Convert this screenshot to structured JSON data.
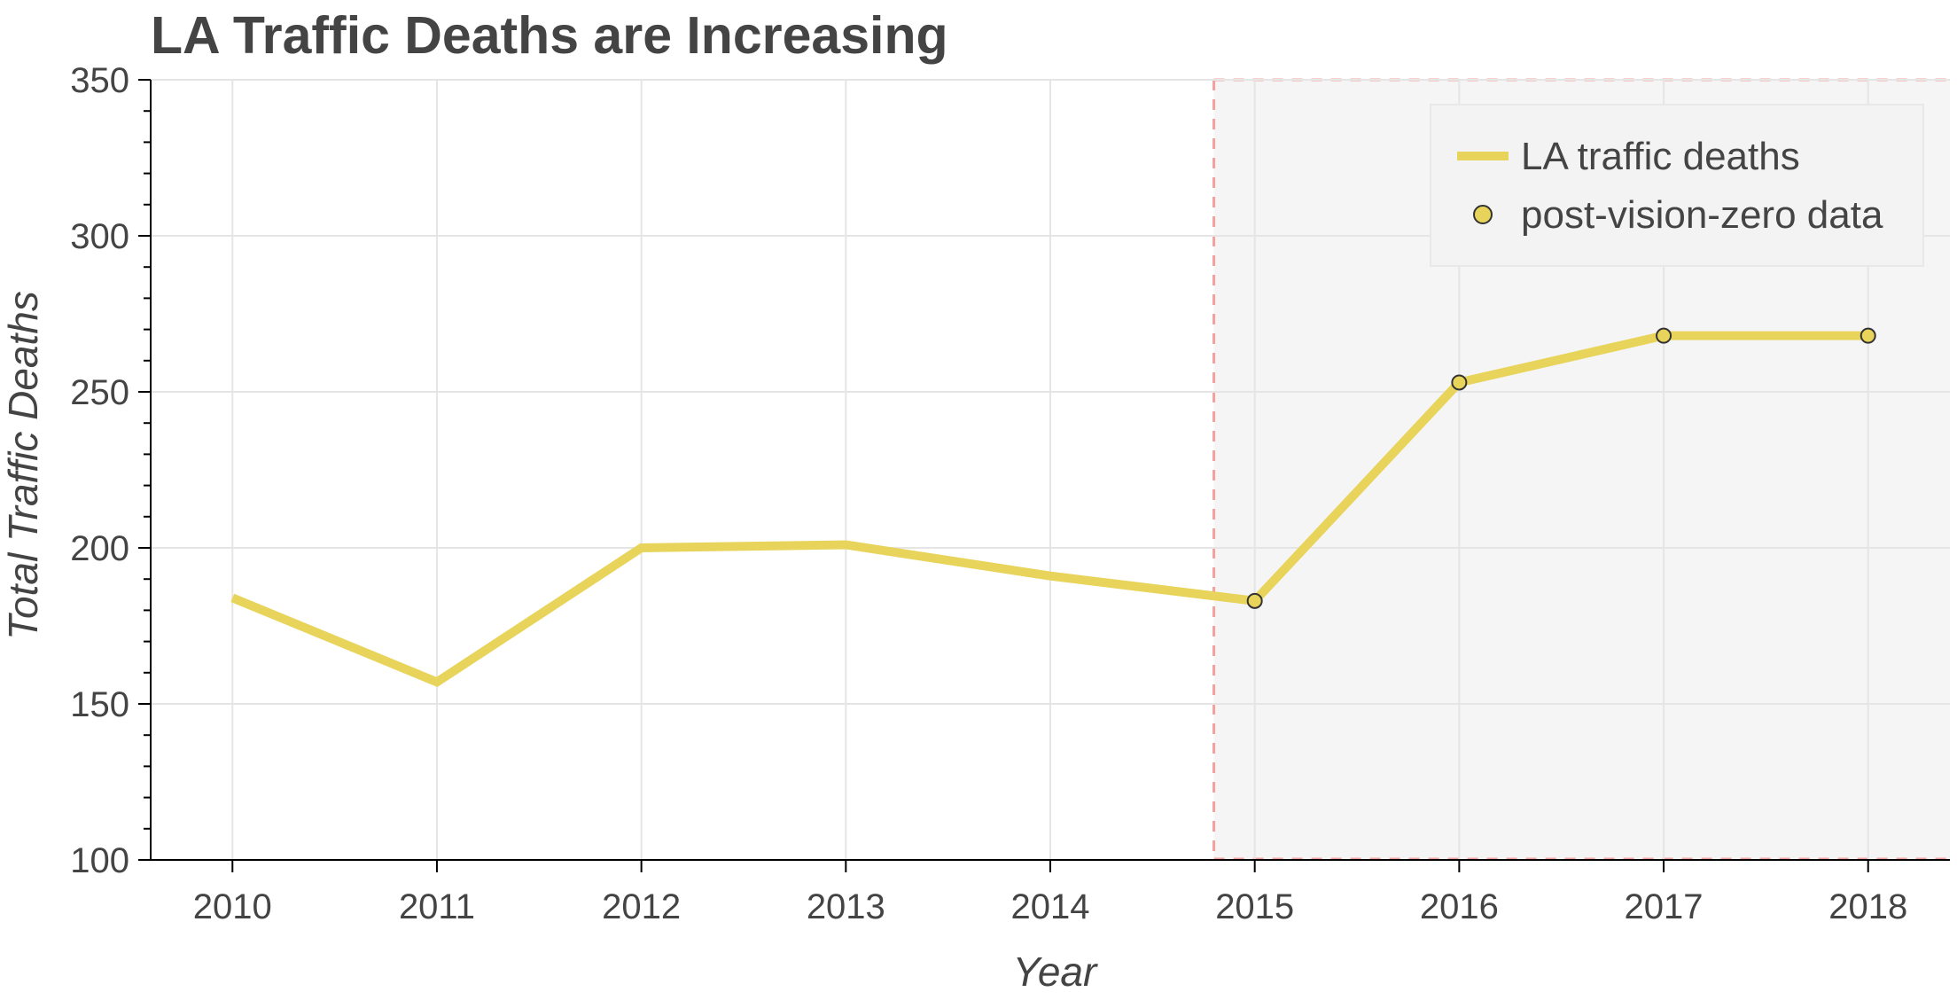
{
  "chart_data": {
    "type": "line",
    "title": "LA Traffic Deaths are Increasing",
    "xlabel": "Year",
    "ylabel": "Total Traffic Deaths",
    "xlim": [
      2009.6,
      2018.4
    ],
    "ylim": [
      100,
      350
    ],
    "x_ticks": [
      2010,
      2011,
      2012,
      2013,
      2014,
      2015,
      2016,
      2017,
      2018
    ],
    "y_ticks": [
      100,
      150,
      200,
      250,
      300,
      350
    ],
    "series": [
      {
        "name": "LA traffic deaths",
        "kind": "line",
        "color": "#E8D45A",
        "x": [
          2010,
          2011,
          2012,
          2013,
          2014,
          2015,
          2016,
          2017,
          2018
        ],
        "y": [
          184,
          157,
          200,
          201,
          191,
          183,
          253,
          268,
          268
        ]
      },
      {
        "name": "post-vision-zero data",
        "kind": "markers",
        "color": "#E8D45A",
        "x": [
          2015,
          2016,
          2017,
          2018
        ],
        "y": [
          183,
          253,
          268,
          268
        ]
      }
    ],
    "highlight_region": {
      "x_start": 2014.8,
      "x_end": 2018.4,
      "fill": "#f5f5f5",
      "border": "#f4a09c"
    },
    "grid": true,
    "legend_position": "top-right"
  }
}
